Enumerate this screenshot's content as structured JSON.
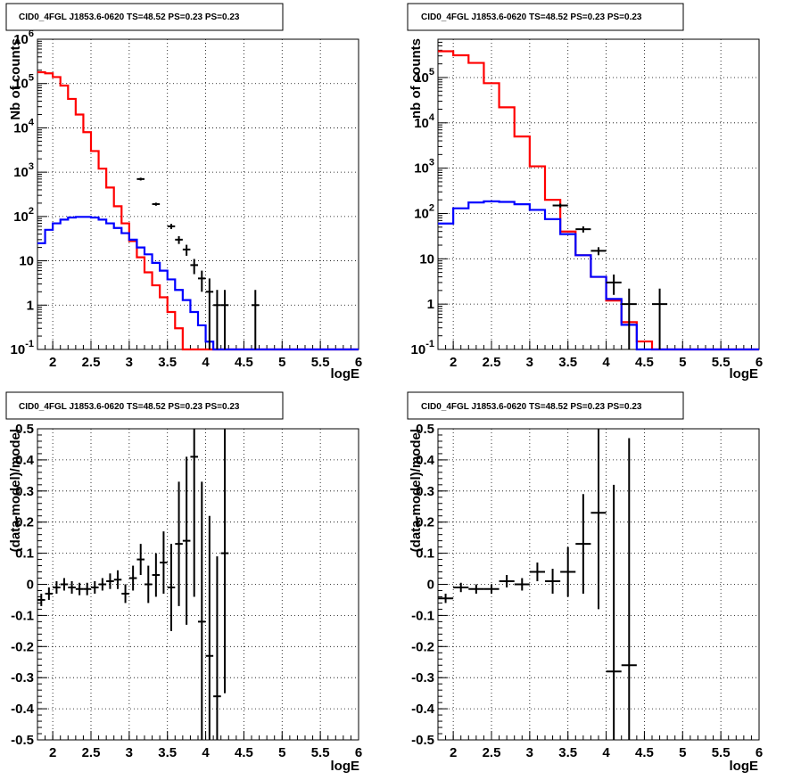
{
  "chart_data": [
    {
      "type": "line",
      "title": "CID0_4FGL J1853.6-0620 TS=48.52 PS=0.23 PS=0.23",
      "xlabel": "logE",
      "ylabel": "Nb of counts",
      "xlim": [
        1.8,
        6.0
      ],
      "ylim": [
        0.1,
        1000000
      ],
      "yscale": "log",
      "grid": true,
      "x_ticks": [
        "2",
        "2.5",
        "3",
        "3.5",
        "4",
        "4.5",
        "5",
        "5.5",
        "6"
      ],
      "y_ticks": [
        "10^-1",
        "1",
        "10",
        "10^2",
        "10^3",
        "10^4",
        "10^5",
        "10^6"
      ],
      "bin_edges": [
        1.8,
        1.9,
        2.0,
        2.1,
        2.2,
        2.3,
        2.4,
        2.5,
        2.6,
        2.7,
        2.8,
        2.9,
        3.0,
        3.1,
        3.2,
        3.3,
        3.4,
        3.5,
        3.6,
        3.7,
        3.8,
        3.9,
        4.0,
        4.1,
        4.2,
        4.3,
        4.4,
        4.5,
        4.6,
        4.7,
        4.8,
        4.9,
        5.0,
        5.1,
        5.2,
        5.3,
        5.4,
        5.5,
        5.6,
        5.7,
        5.8,
        5.9,
        6.0
      ],
      "series": [
        {
          "color": "#ff0000",
          "kind": "step",
          "values": [
            180000,
            170000,
            140000,
            90000,
            45000,
            20000,
            8000,
            3000,
            1200,
            450,
            170,
            70,
            28,
            12,
            5.5,
            2.8,
            1.5,
            0.7,
            0.3,
            0.1,
            0.1,
            0.1,
            0.1,
            0.1,
            0.1,
            0.1,
            0.1,
            0.1,
            0.1,
            0.1,
            0.1,
            0.1,
            0.1,
            0.1,
            0.1,
            0.1,
            0.1,
            0.1,
            0.1,
            0.1,
            0.1,
            0.1
          ]
        },
        {
          "color": "#0000ff",
          "kind": "step",
          "values": [
            25,
            50,
            70,
            85,
            95,
            98,
            98,
            95,
            85,
            70,
            55,
            42,
            30,
            20,
            14,
            9,
            6,
            3.8,
            2.2,
            1.3,
            0.7,
            0.35,
            0.15,
            0.1,
            0.1,
            0.1,
            0.1,
            0.1,
            0.1,
            0.1,
            0.1,
            0.1,
            0.1,
            0.1,
            0.1,
            0.1,
            0.1,
            0.1,
            0.1,
            0.1,
            0.1,
            0.1
          ]
        },
        {
          "color": "#000000",
          "kind": "points",
          "x": [
            3.15,
            3.35,
            3.55,
            3.65,
            3.75,
            3.85,
            3.95,
            4.05,
            4.15,
            4.25,
            4.65
          ],
          "y": [
            700,
            190,
            60,
            30,
            18,
            8,
            4,
            2,
            1,
            1,
            1
          ],
          "ylo": [
            650,
            175,
            52,
            24,
            13,
            5,
            2,
            0.1,
            0.1,
            0.1,
            0.1
          ],
          "yhi": [
            750,
            205,
            68,
            36,
            23,
            11,
            6,
            4,
            2.2,
            2.2,
            2.2
          ]
        }
      ]
    },
    {
      "type": "line",
      "title": "CID0_4FGL J1853.6-0620 TS=48.52 PS=0.23 PS=0.23",
      "xlabel": "logE",
      "ylabel": "nb of counts",
      "xlim": [
        1.8,
        6.0
      ],
      "ylim": [
        0.1,
        700000
      ],
      "yscale": "log",
      "grid": true,
      "x_ticks": [
        "2",
        "2.5",
        "3",
        "3.5",
        "4",
        "4.5",
        "5",
        "5.5",
        "6"
      ],
      "y_ticks": [
        "10^-1",
        "1",
        "10",
        "10^2",
        "10^3",
        "10^4",
        "10^5"
      ],
      "bin_edges": [
        1.8,
        2.0,
        2.2,
        2.4,
        2.6,
        2.8,
        3.0,
        3.2,
        3.4,
        3.6,
        3.8,
        4.0,
        4.2,
        4.4,
        4.6,
        4.8,
        5.0,
        5.2,
        5.4,
        5.6,
        5.8,
        6.0
      ],
      "series": [
        {
          "color": "#ff0000",
          "kind": "step",
          "values": [
            380000,
            310000,
            210000,
            75000,
            22000,
            5000,
            1100,
            200,
            40,
            12,
            4,
            1.2,
            0.4,
            0.15,
            0.1,
            0.1,
            0.1,
            0.1,
            0.1,
            0.1,
            0.1
          ]
        },
        {
          "color": "#0000ff",
          "kind": "step",
          "values": [
            60,
            130,
            175,
            185,
            180,
            160,
            120,
            75,
            35,
            12,
            4,
            1.3,
            0.35,
            0.1,
            0.1,
            0.1,
            0.1,
            0.1,
            0.1,
            0.1,
            0.1
          ]
        },
        {
          "color": "#000000",
          "kind": "points",
          "x": [
            3.4,
            3.7,
            3.9,
            4.1,
            4.3,
            4.7
          ],
          "y": [
            150,
            45,
            15,
            3,
            1,
            1
          ],
          "ylo": [
            135,
            38,
            12,
            1.6,
            0.1,
            0.1
          ],
          "yhi": [
            165,
            52,
            18,
            4.5,
            2.2,
            2.2
          ]
        }
      ]
    },
    {
      "type": "scatter",
      "title": "CID0_4FGL J1853.6-0620 TS=48.52 PS=0.23 PS=0.23",
      "xlabel": "logE",
      "ylabel": "(data-model)/model",
      "xlim": [
        1.8,
        6.0
      ],
      "ylim": [
        -0.5,
        0.5
      ],
      "grid": true,
      "x_ticks": [
        "2",
        "2.5",
        "3",
        "3.5",
        "4",
        "4.5",
        "5",
        "5.5",
        "6"
      ],
      "y_ticks": [
        "-0.5",
        "-0.4",
        "-0.3",
        "-0.2",
        "-0.1",
        "0",
        "0.1",
        "0.2",
        "0.3",
        "0.4",
        "0.5"
      ],
      "points": {
        "x": [
          1.85,
          1.95,
          2.05,
          2.15,
          2.25,
          2.35,
          2.45,
          2.55,
          2.65,
          2.75,
          2.85,
          2.95,
          3.05,
          3.15,
          3.25,
          3.35,
          3.45,
          3.55,
          3.65,
          3.75,
          3.85,
          3.95,
          4.05,
          4.15,
          4.25
        ],
        "y": [
          -0.05,
          -0.03,
          -0.01,
          0.0,
          -0.01,
          -0.015,
          -0.015,
          -0.01,
          0.0,
          0.01,
          0.015,
          -0.03,
          0.02,
          0.08,
          0.0,
          0.03,
          0.07,
          -0.01,
          0.13,
          0.14,
          0.41,
          -0.12,
          -0.23,
          -0.36,
          0.1
        ],
        "err": [
          0.02,
          0.02,
          0.02,
          0.02,
          0.02,
          0.02,
          0.02,
          0.02,
          0.02,
          0.025,
          0.03,
          0.03,
          0.04,
          0.05,
          0.06,
          0.07,
          0.1,
          0.14,
          0.2,
          0.27,
          0.45,
          0.45,
          0.45,
          0.45,
          0.45
        ]
      }
    },
    {
      "type": "scatter",
      "title": "CID0_4FGL J1853.6-0620 TS=48.52 PS=0.23 PS=0.23",
      "xlabel": "logE",
      "ylabel": "(data-model)/model",
      "xlim": [
        1.8,
        6.0
      ],
      "ylim": [
        -0.5,
        0.5
      ],
      "grid": true,
      "x_ticks": [
        "2",
        "2.5",
        "3",
        "3.5",
        "4",
        "4.5",
        "5",
        "5.5",
        "6"
      ],
      "y_ticks": [
        "-0.5",
        "-0.4",
        "-0.3",
        "-0.2",
        "-0.1",
        "0",
        "0.1",
        "0.2",
        "0.3",
        "0.4",
        "0.5"
      ],
      "points": {
        "x": [
          1.9,
          2.1,
          2.3,
          2.5,
          2.7,
          2.9,
          3.1,
          3.3,
          3.5,
          3.7,
          3.9,
          4.1,
          4.3
        ],
        "y": [
          -0.045,
          -0.01,
          -0.015,
          -0.015,
          0.01,
          0.0,
          0.04,
          0.01,
          0.04,
          0.13,
          0.23,
          -0.28,
          -0.26
        ],
        "err": [
          0.015,
          0.015,
          0.015,
          0.015,
          0.02,
          0.02,
          0.03,
          0.04,
          0.08,
          0.16,
          0.31,
          0.6,
          0.73
        ]
      }
    }
  ]
}
